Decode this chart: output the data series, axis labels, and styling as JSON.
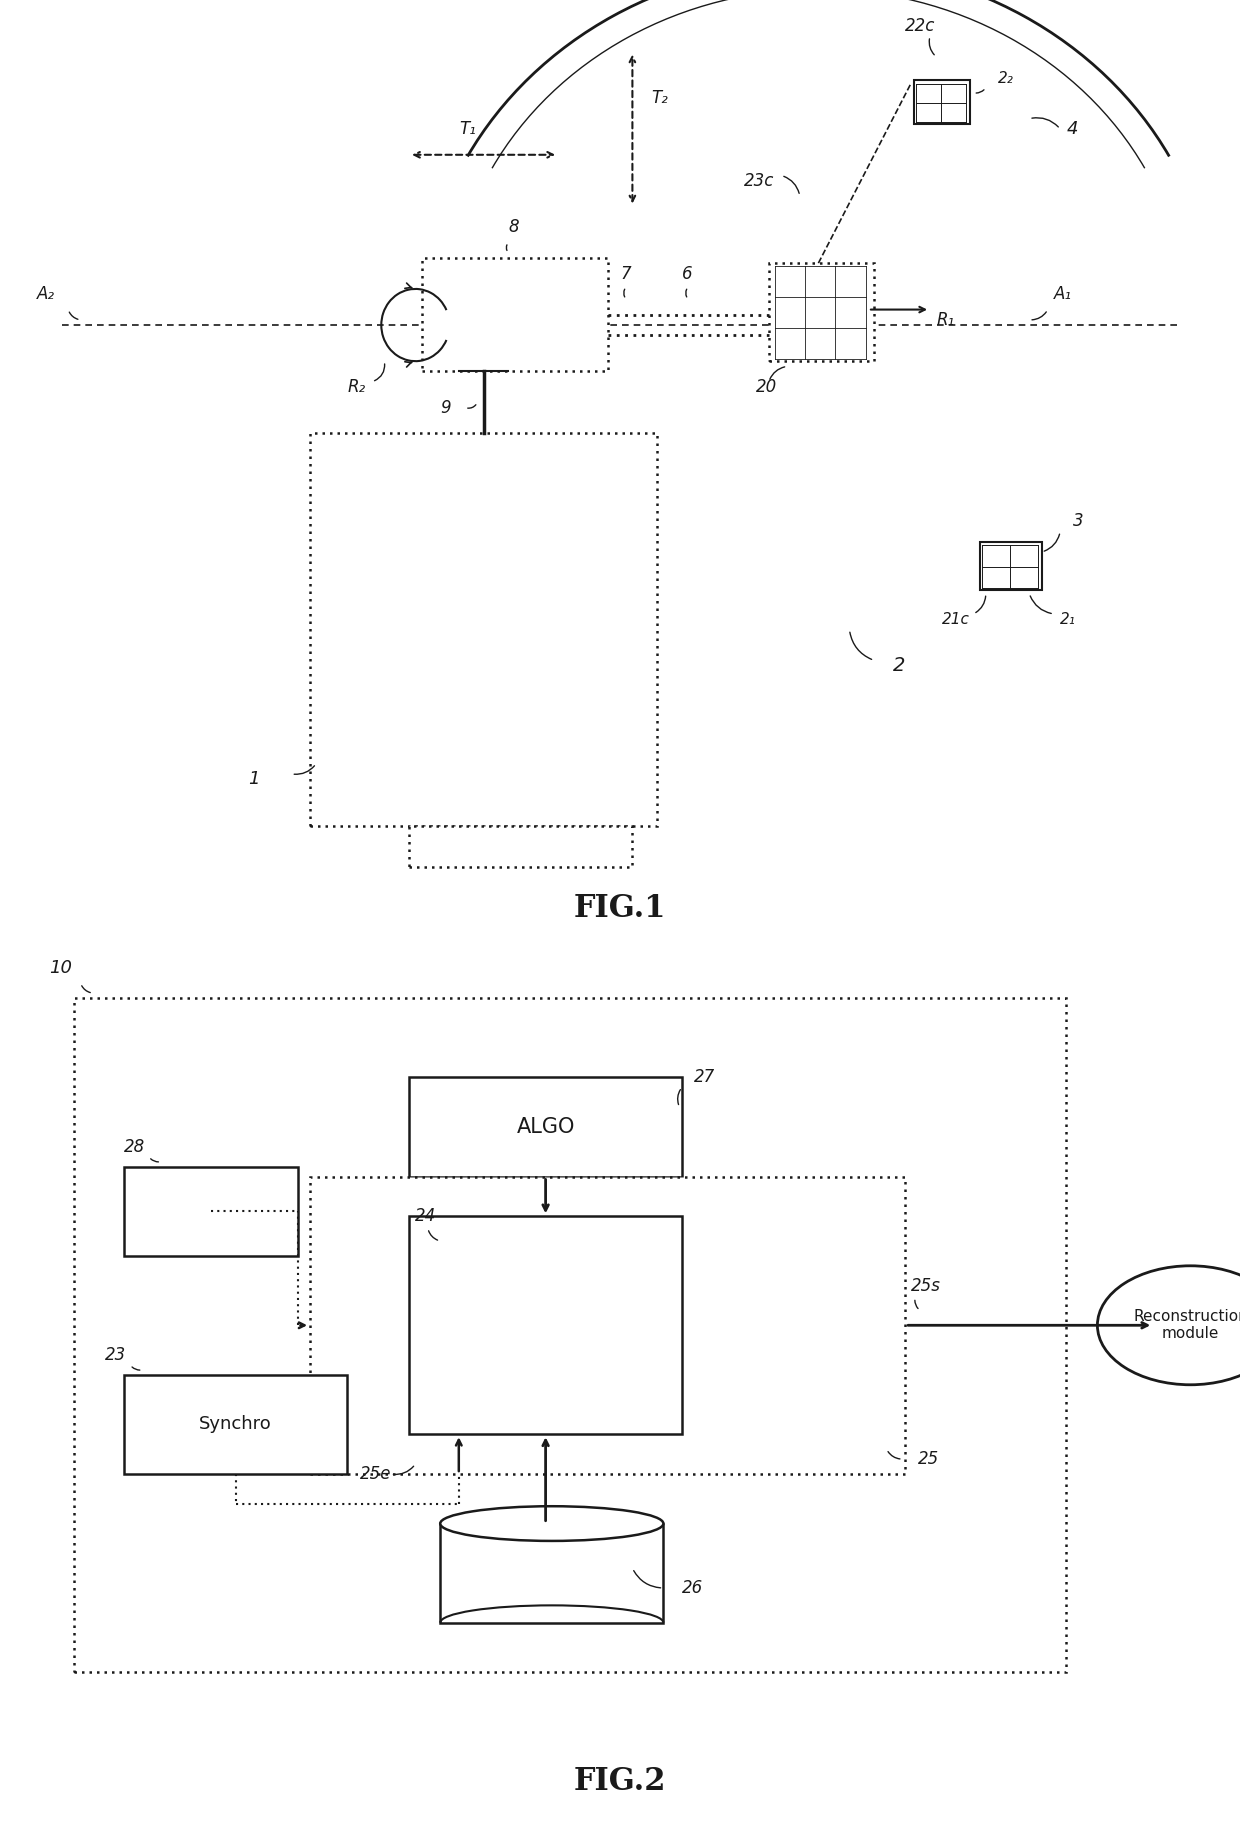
{
  "fig_width": 12.4,
  "fig_height": 18.21,
  "bg_color": "#ffffff",
  "line_color": "#1a1a1a",
  "fig1_title": "FIG.1",
  "fig2_title": "FIG.2",
  "labels": {
    "A2": "A₂",
    "A1": "A₁",
    "R1": "R₁",
    "R2": "R₂",
    "T1": "T₁",
    "T2": "T₂",
    "label_1": "1",
    "label_2": "2",
    "label_3": "3",
    "label_4": "4",
    "label_6": "6",
    "label_7": "7",
    "label_8": "8",
    "label_9": "9",
    "label_20": "20",
    "label_21c": "21c",
    "label_22c": "22c",
    "label_23c": "23c",
    "label_2_1": "2₁",
    "label_2_2": "2₂",
    "label_10": "10",
    "label_23": "23",
    "label_24": "24",
    "label_25": "25",
    "label_25e": "25e",
    "label_25s": "25s",
    "label_26": "26",
    "label_27": "27",
    "label_28": "28",
    "algo_text": "ALGO",
    "synchro_text": "Synchro",
    "recon_text": "Reconstruction\nmodule"
  }
}
